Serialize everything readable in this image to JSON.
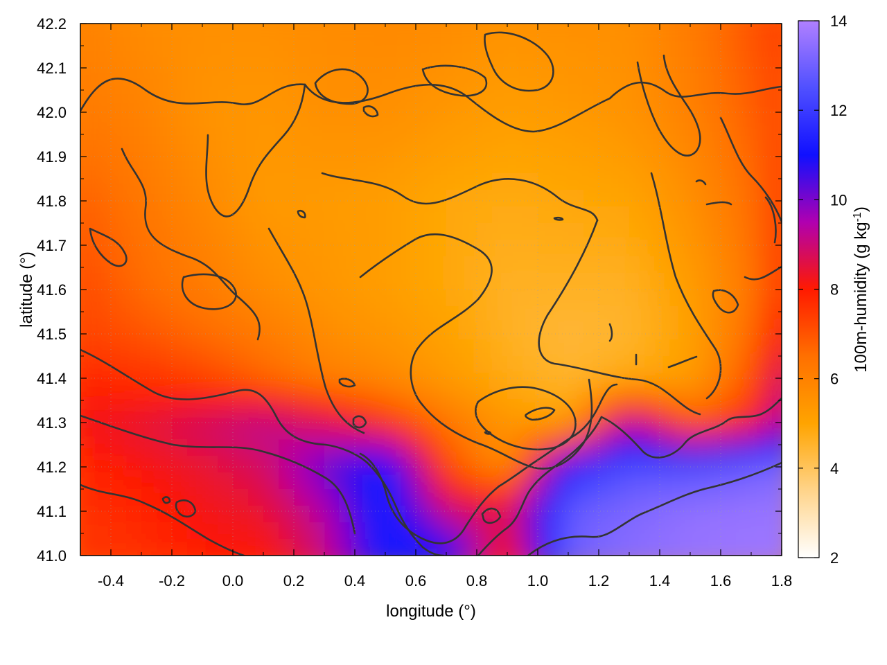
{
  "chart_data": {
    "type": "heatmap",
    "title": "",
    "xlabel": "longitude (°)",
    "ylabel": "latitude (°)",
    "colorbar_label": "100m-humidity (g kg-1)",
    "colorbar_label_parts": {
      "base": "100m-humidity (g kg",
      "sup": "-1",
      "end": ")"
    },
    "xlim": [
      -0.5,
      1.8
    ],
    "ylim": [
      41.0,
      42.2
    ],
    "clim": [
      2,
      14
    ],
    "x_ticks": [
      -0.4,
      -0.2,
      0.0,
      0.2,
      0.4,
      0.6,
      0.8,
      1.0,
      1.2,
      1.4,
      1.6,
      1.8
    ],
    "x_tick_labels": [
      "-0.4",
      "-0.2",
      "0.0",
      "0.2",
      "0.4",
      "0.6",
      "0.8",
      "1.0",
      "1.2",
      "1.4",
      "1.6",
      "1.8"
    ],
    "y_ticks": [
      41.0,
      41.1,
      41.2,
      41.3,
      41.4,
      41.5,
      41.6,
      41.7,
      41.8,
      41.9,
      42.0,
      42.1,
      42.2
    ],
    "y_tick_labels": [
      "41.0",
      "41.1",
      "41.2",
      "41.3",
      "41.4",
      "41.5",
      "41.6",
      "41.7",
      "41.8",
      "41.9",
      "42.0",
      "42.1",
      "42.2"
    ],
    "colorbar_ticks": [
      2,
      4,
      6,
      8,
      10,
      12,
      14
    ],
    "colorbar_tick_labels": [
      "2",
      "4",
      "6",
      "8",
      "10",
      "12",
      "14"
    ],
    "colormap": [
      "#ffffff",
      "#ffd48a",
      "#ffa400",
      "#ff7000",
      "#ff1a00",
      "#b000b0",
      "#1010ff",
      "#5050ff",
      "#b080ff"
    ],
    "grid": true,
    "contours": true,
    "humidity_samples": {
      "lon": [
        -0.5,
        -0.3,
        -0.1,
        0.1,
        0.3,
        0.5,
        0.7,
        0.9,
        1.1,
        1.3,
        1.5,
        1.7,
        1.8
      ],
      "lat": [
        42.2,
        42.0,
        41.8,
        41.6,
        41.5,
        41.4,
        41.3,
        41.2,
        41.1,
        41.0
      ],
      "values": [
        [
          6.0,
          5.7,
          5.6,
          5.6,
          5.7,
          5.8,
          5.7,
          5.5,
          5.6,
          5.6,
          6.2,
          7.0,
          7.4
        ],
        [
          6.2,
          6.0,
          5.5,
          5.4,
          5.6,
          5.6,
          5.4,
          5.2,
          5.3,
          5.5,
          6.0,
          6.8,
          7.2
        ],
        [
          6.8,
          6.3,
          5.8,
          5.3,
          5.3,
          5.2,
          4.9,
          4.8,
          4.9,
          5.0,
          5.6,
          6.5,
          7.4
        ],
        [
          7.2,
          6.6,
          6.2,
          5.7,
          5.4,
          5.2,
          4.9,
          4.6,
          4.6,
          4.6,
          5.2,
          6.3,
          7.6
        ],
        [
          7.3,
          7.0,
          6.6,
          6.2,
          5.7,
          5.4,
          5.1,
          4.6,
          4.4,
          4.5,
          5.1,
          6.5,
          8.2
        ],
        [
          7.8,
          7.6,
          7.3,
          6.7,
          6.1,
          5.8,
          5.3,
          4.8,
          4.5,
          4.8,
          5.2,
          7.0,
          9.0
        ],
        [
          8.2,
          8.5,
          8.9,
          9.3,
          8.7,
          7.6,
          6.3,
          5.4,
          5.0,
          9.5,
          6.8,
          7.8,
          9.5
        ],
        [
          7.8,
          8.1,
          8.4,
          8.8,
          10.2,
          11.5,
          7.2,
          5.6,
          11.5,
          12.5,
          12.5,
          13.0,
          13.2
        ],
        [
          7.6,
          7.8,
          8.2,
          8.4,
          9.4,
          11.6,
          9.0,
          8.6,
          12.8,
          13.2,
          13.5,
          13.6,
          13.6
        ],
        [
          7.5,
          7.6,
          8.0,
          8.0,
          9.0,
          11.4,
          11.2,
          7.8,
          13.0,
          13.4,
          13.6,
          13.7,
          13.7
        ]
      ]
    }
  }
}
